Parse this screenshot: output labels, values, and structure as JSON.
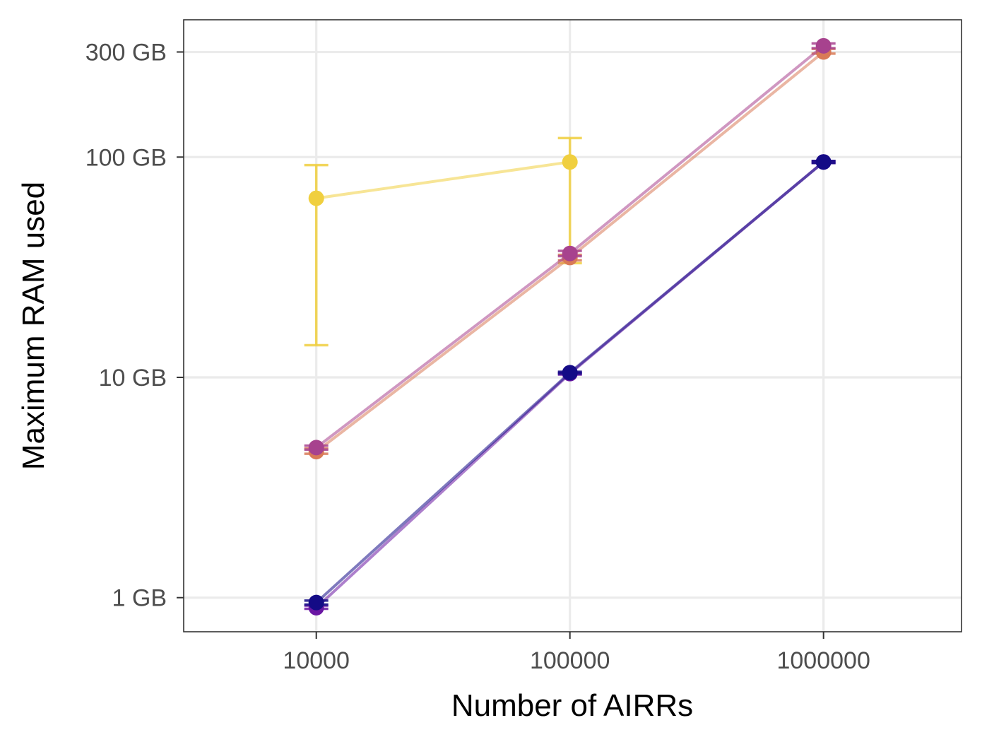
{
  "chart_data": {
    "type": "line",
    "title": "",
    "xlabel": "Number of AIRRs",
    "ylabel": "Maximum RAM used",
    "x_scale": "log10",
    "y_scale": "log10",
    "xlim": [
      3000,
      3500000
    ],
    "ylim": [
      0.7,
      420
    ],
    "x_ticks": [
      10000,
      100000,
      1000000
    ],
    "x_tick_labels": [
      "10000",
      "100000",
      "1000000"
    ],
    "y_ticks": [
      1,
      10,
      100,
      300
    ],
    "y_tick_labels": [
      "1 GB",
      "10 GB",
      "100 GB",
      "300 GB"
    ],
    "y_unit": "GB",
    "grid": true,
    "legend": "none",
    "series": [
      {
        "color": "#F0CF3F",
        "x": [
          10000,
          100000
        ],
        "y": [
          65,
          95
        ],
        "err_low": [
          14,
          33
        ],
        "err_high": [
          92,
          122
        ]
      },
      {
        "color": "#D97A57",
        "x": [
          10000,
          100000,
          1000000
        ],
        "y": [
          4.6,
          35,
          300
        ],
        "err_low": [
          4.5,
          34,
          295
        ],
        "err_high": [
          4.75,
          36,
          310
        ]
      },
      {
        "color": "#A7428E",
        "x": [
          10000,
          100000,
          1000000
        ],
        "y": [
          4.8,
          36.5,
          320
        ],
        "err_low": [
          4.7,
          35.5,
          312
        ],
        "err_high": [
          4.9,
          37.5,
          328
        ]
      },
      {
        "color": "#6A16A3",
        "x": [
          10000,
          100000,
          1000000
        ],
        "y": [
          0.9,
          10.4,
          95
        ],
        "err_low": [
          0.89,
          10.3,
          94
        ],
        "err_high": [
          0.92,
          10.5,
          96
        ]
      },
      {
        "color": "#140B86",
        "x": [
          10000,
          100000,
          1000000
        ],
        "y": [
          0.95,
          10.5,
          95
        ],
        "err_low": [
          0.93,
          10.4,
          94
        ],
        "err_high": [
          0.97,
          10.6,
          96
        ]
      }
    ]
  }
}
